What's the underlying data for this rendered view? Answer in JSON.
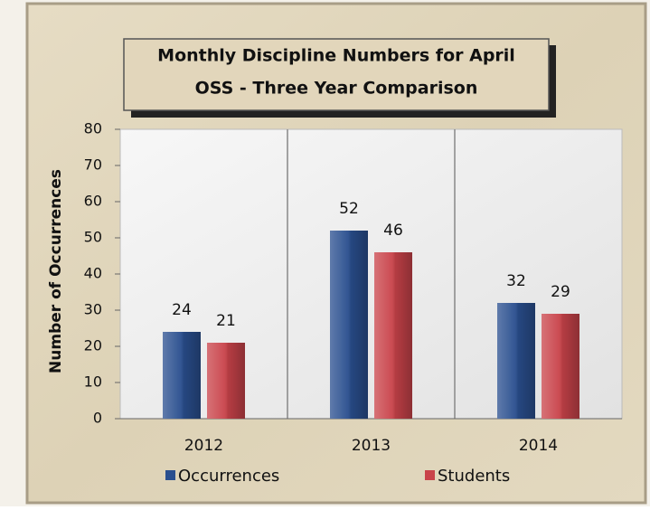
{
  "chart_data": {
    "type": "bar",
    "title": "Monthly Discipline Numbers for April",
    "subtitle": "OSS - Three Year Comparison",
    "y_label": "Number of Occurrences",
    "categories": [
      "2012",
      "2013",
      "2014"
    ],
    "series": [
      {
        "name": "Occurrences",
        "color": "#2a4f8f",
        "values": [
          24,
          52,
          32
        ]
      },
      {
        "name": "Students",
        "color": "#c9434a",
        "values": [
          21,
          46,
          29
        ]
      }
    ],
    "ylim": [
      0,
      80
    ],
    "yticks": [
      0,
      10,
      20,
      30,
      40,
      50,
      60,
      70,
      80
    ],
    "grid": false,
    "legend": "bottom"
  }
}
